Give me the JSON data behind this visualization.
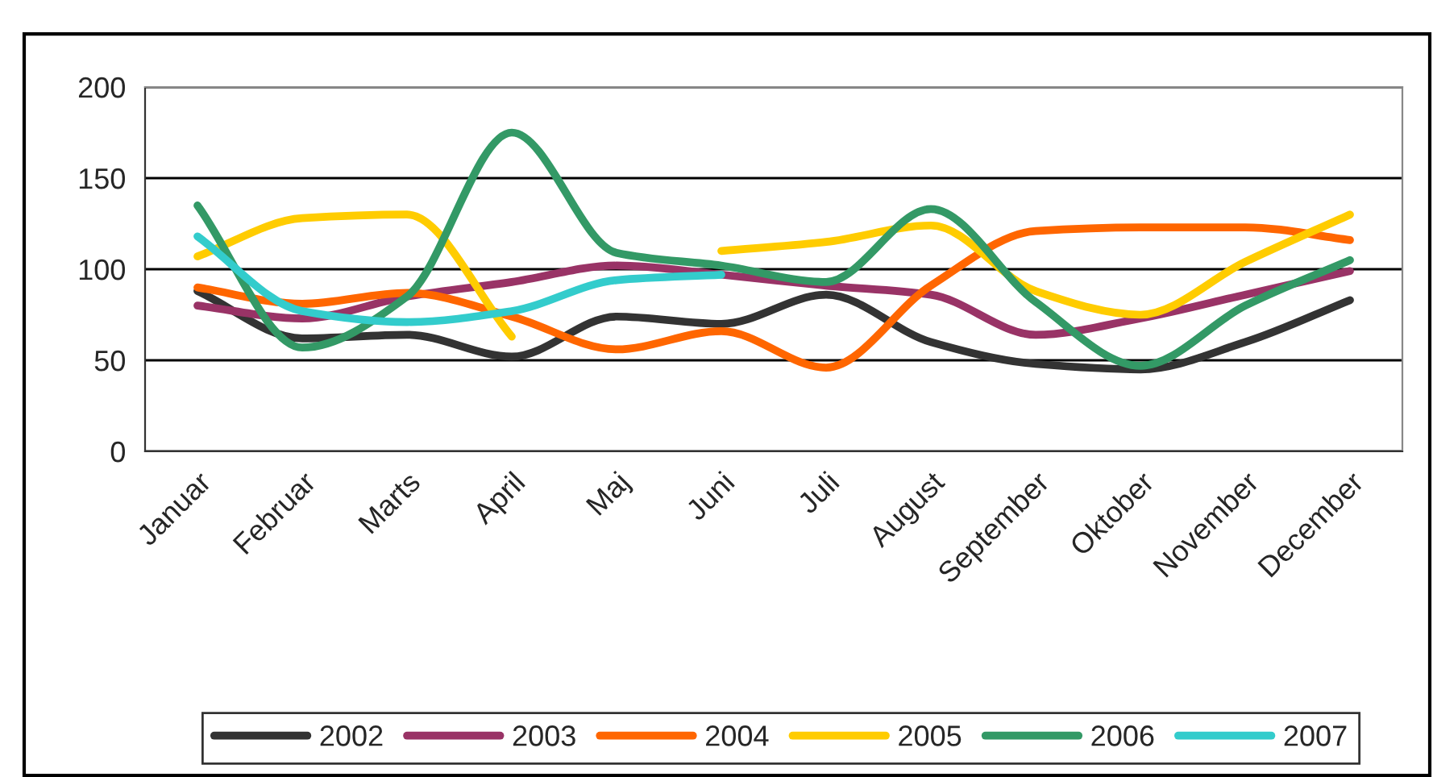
{
  "chart_data": {
    "type": "line",
    "categories": [
      "Januar",
      "Februar",
      "Marts",
      "April",
      "Maj",
      "Juni",
      "Juli",
      "August",
      "September",
      "Oktober",
      "November",
      "December"
    ],
    "ylim": [
      0,
      200
    ],
    "yticks": [
      0,
      50,
      100,
      150,
      200
    ],
    "grid": "y",
    "legend": "bottom",
    "line_style": "solid",
    "marker": "none",
    "series": [
      {
        "name": "2002",
        "color": "#333333",
        "values": [
          88,
          62,
          64,
          52,
          74,
          70,
          86,
          60,
          48,
          45,
          60,
          83
        ]
      },
      {
        "name": "2003",
        "color": "#993366",
        "values": [
          80,
          73,
          85,
          93,
          102,
          97,
          91,
          86,
          64,
          73,
          86,
          99
        ]
      },
      {
        "name": "2004",
        "color": "#ff6600",
        "values": [
          90,
          81,
          87,
          74,
          56,
          66,
          46,
          91,
          121,
          123,
          123,
          116
        ]
      },
      {
        "name": "2005",
        "color": "#ffcc00",
        "values": [
          107,
          128,
          130,
          63,
          null,
          110,
          115,
          124,
          88,
          75,
          104,
          130
        ]
      },
      {
        "name": "2006",
        "color": "#339966",
        "values": [
          135,
          57,
          85,
          175,
          109,
          102,
          93,
          133,
          82,
          47,
          80,
          105
        ]
      },
      {
        "name": "2007",
        "color": "#33cccc",
        "values": [
          118,
          77,
          71,
          77,
          94,
          97,
          null,
          null,
          null,
          null,
          null,
          null
        ]
      }
    ]
  }
}
